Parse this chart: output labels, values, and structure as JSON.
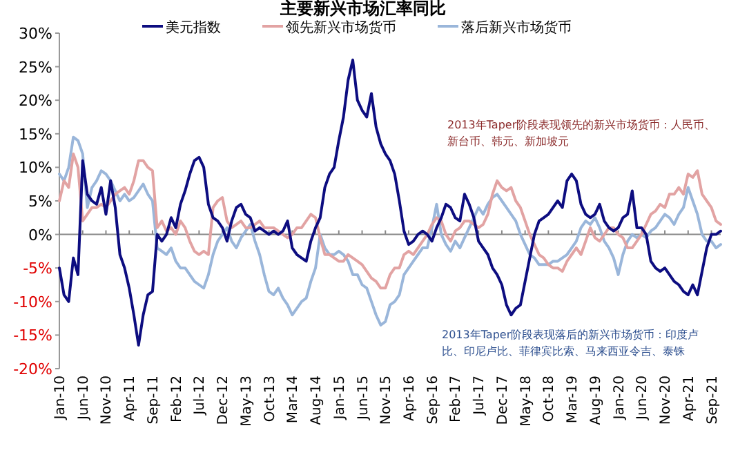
{
  "chart_data": {
    "type": "line",
    "title": "主要新兴市场汇率同比",
    "legend": "top",
    "line_style": "solid",
    "marker": "none",
    "x": [
      "2010-01",
      "2010-02",
      "2010-03",
      "2010-04",
      "2010-05",
      "2010-06",
      "2010-07",
      "2010-08",
      "2010-09",
      "2010-10",
      "2010-11",
      "2010-12",
      "2011-01",
      "2011-02",
      "2011-03",
      "2011-04",
      "2011-05",
      "2011-06",
      "2011-07",
      "2011-08",
      "2011-09",
      "2011-10",
      "2011-11",
      "2011-12",
      "2012-01",
      "2012-02",
      "2012-03",
      "2012-04",
      "2012-05",
      "2012-06",
      "2012-07",
      "2012-08",
      "2012-09",
      "2012-10",
      "2012-11",
      "2012-12",
      "2013-01",
      "2013-02",
      "2013-03",
      "2013-04",
      "2013-05",
      "2013-06",
      "2013-07",
      "2013-08",
      "2013-09",
      "2013-10",
      "2013-11",
      "2013-12",
      "2014-01",
      "2014-02",
      "2014-03",
      "2014-04",
      "2014-05",
      "2014-06",
      "2014-07",
      "2014-08",
      "2014-09",
      "2014-10",
      "2014-11",
      "2014-12",
      "2015-01",
      "2015-02",
      "2015-03",
      "2015-04",
      "2015-05",
      "2015-06",
      "2015-07",
      "2015-08",
      "2015-09",
      "2015-10",
      "2015-11",
      "2015-12",
      "2016-01",
      "2016-02",
      "2016-03",
      "2016-04",
      "2016-05",
      "2016-06",
      "2016-07",
      "2016-08",
      "2016-09",
      "2016-10",
      "2016-11",
      "2016-12",
      "2017-01",
      "2017-02",
      "2017-03",
      "2017-04",
      "2017-05",
      "2017-06",
      "2017-07",
      "2017-08",
      "2017-09",
      "2017-10",
      "2017-11",
      "2017-12",
      "2018-01",
      "2018-02",
      "2018-03",
      "2018-04",
      "2018-05",
      "2018-06",
      "2018-07",
      "2018-08",
      "2018-09",
      "2018-10",
      "2018-11",
      "2018-12",
      "2019-01",
      "2019-02",
      "2019-03",
      "2019-04",
      "2019-05",
      "2019-06",
      "2019-07",
      "2019-08",
      "2019-09",
      "2019-10",
      "2019-11",
      "2019-12",
      "2020-01",
      "2020-02",
      "2020-03",
      "2020-04",
      "2020-05",
      "2020-06",
      "2020-07",
      "2020-08",
      "2020-09",
      "2020-10",
      "2020-11",
      "2020-12",
      "2021-01",
      "2021-02",
      "2021-03",
      "2021-04",
      "2021-05",
      "2021-06",
      "2021-07",
      "2021-08",
      "2021-09",
      "2021-10",
      "2021-11"
    ],
    "series": [
      {
        "name": "美元指数",
        "color": "#0d0d80",
        "values": [
          -5,
          -9,
          -10,
          -3.5,
          -6,
          11,
          6,
          5,
          4.5,
          7,
          3,
          8,
          4,
          -3,
          -5,
          -8,
          -12,
          -16.5,
          -12,
          -9,
          -8.5,
          0,
          -1,
          0,
          2.5,
          1,
          4.5,
          6.5,
          9,
          11,
          11.5,
          10,
          4.5,
          2.5,
          2,
          1,
          -1,
          2,
          4,
          4.5,
          3,
          2.5,
          0.5,
          1,
          0.5,
          0,
          0.5,
          0,
          0.5,
          2,
          -2,
          -3,
          -3.5,
          -4,
          -1,
          1,
          2.5,
          7,
          9,
          10,
          14,
          17.5,
          23,
          26,
          20,
          18.5,
          17.5,
          21,
          16,
          13.5,
          12,
          11,
          9,
          5,
          0.5,
          -1.5,
          -1,
          0,
          0.5,
          0,
          -1,
          1,
          2.5,
          4.5,
          4,
          2.5,
          2,
          6,
          4.5,
          2.5,
          -1,
          -2,
          -3,
          -5,
          -6,
          -7.5,
          -10.5,
          -12,
          -11,
          -10.5,
          -7,
          -3.5,
          0,
          2,
          2.5,
          3,
          4,
          5,
          4,
          8,
          9,
          8,
          4.5,
          3,
          2.5,
          3,
          4.5,
          2,
          1,
          0.5,
          1,
          2.5,
          3,
          6.5,
          1,
          1,
          0,
          -4,
          -5,
          -5.5,
          -5,
          -6,
          -7,
          -7.5,
          -8.5,
          -9,
          -7.5,
          -9,
          -5.5,
          -2,
          0,
          0,
          0.5
        ]
      },
      {
        "name": "领先新兴市场货币",
        "color": "#e2a3a3",
        "values": [
          5,
          8,
          7,
          12,
          10,
          2,
          3,
          4,
          4,
          4.5,
          4,
          5,
          6,
          6.5,
          7,
          6,
          8,
          11,
          11,
          10,
          9.5,
          1,
          2,
          0.5,
          1,
          0,
          2,
          1,
          -1,
          -2.5,
          -3,
          -2.5,
          -3,
          4,
          5,
          5.5,
          2,
          1,
          1.5,
          2,
          1,
          1,
          1.5,
          2,
          1,
          1,
          1,
          0.5,
          0,
          -0.5,
          0,
          1,
          1,
          2,
          3,
          2.5,
          -0.5,
          -3,
          -3,
          -3.5,
          -4,
          -4,
          -3,
          -3.5,
          -4,
          -4.5,
          -5.5,
          -6.5,
          -7,
          -8,
          -8,
          -6,
          -5,
          -5,
          -3,
          -2.5,
          -3,
          -2,
          -1,
          0,
          1.5,
          2.5,
          2,
          0,
          -1,
          0.5,
          1,
          2,
          2,
          1.5,
          1,
          1.5,
          3,
          6,
          8,
          7,
          6.5,
          7,
          5,
          4,
          2,
          0,
          -1.5,
          -3,
          -3.5,
          -4.5,
          -5,
          -5,
          -5.5,
          -4,
          -3,
          -2,
          -3,
          -1,
          1,
          -0.5,
          -1,
          0,
          1,
          1,
          0,
          -0.5,
          -2,
          -2,
          -1,
          0,
          1.5,
          3,
          3.5,
          4.5,
          4,
          6,
          6,
          7,
          6,
          9,
          8.5,
          9.5,
          6,
          5,
          4,
          2,
          1.5
        ]
      },
      {
        "name": "落后新兴市场货币",
        "color": "#9ab6da",
        "values": [
          9,
          8,
          10,
          14.5,
          14,
          12,
          4,
          7,
          8,
          9.5,
          9,
          8,
          6.5,
          5,
          6,
          5,
          5.5,
          6.5,
          7.5,
          6,
          5,
          -2,
          -2.5,
          -3,
          -2,
          -4,
          -5,
          -5,
          -6,
          -7,
          -7.5,
          -8,
          -6,
          -3,
          -1,
          0,
          1,
          -1,
          -2,
          -0.5,
          0.5,
          1.5,
          -1,
          -3,
          -6,
          -8.5,
          -9,
          -8,
          -9.5,
          -10.5,
          -12,
          -11,
          -10,
          -9.5,
          -7,
          -5,
          0,
          -2,
          -3,
          -3,
          -2.5,
          -3,
          -4,
          -6,
          -6,
          -7.5,
          -8,
          -10,
          -12,
          -13.5,
          -13,
          -10.5,
          -10,
          -9,
          -6,
          -5,
          -4,
          -3,
          -2,
          -2,
          1,
          4.5,
          0,
          -1.5,
          -2.5,
          -1,
          -2,
          -0.5,
          1,
          2.5,
          4,
          3,
          4.5,
          5.5,
          6,
          5,
          4,
          3,
          2,
          0,
          -1.5,
          -3,
          -3.5,
          -4.5,
          -4.5,
          -4.5,
          -4,
          -4,
          -3.5,
          -3,
          -2,
          -1,
          1,
          2,
          1.5,
          2.5,
          1,
          -1,
          -2,
          -3.5,
          -6,
          -3,
          -1,
          0,
          -0.5,
          0,
          -0.5,
          0.5,
          1,
          2,
          3,
          2.5,
          1.5,
          3,
          4,
          7,
          5,
          3,
          0,
          -1,
          -1,
          -2,
          -1.5
        ]
      }
    ],
    "xlim": [
      "2010-01",
      "2021-11"
    ],
    "xticks": [
      {
        "value": "2010-01",
        "label": "Jan-10"
      },
      {
        "value": "2010-06",
        "label": "Jun-10"
      },
      {
        "value": "2010-11",
        "label": "Nov-10"
      },
      {
        "value": "2011-04",
        "label": "Apr-11"
      },
      {
        "value": "2011-09",
        "label": "Sep-11"
      },
      {
        "value": "2012-02",
        "label": "Feb-12"
      },
      {
        "value": "2012-07",
        "label": "Jul-12"
      },
      {
        "value": "2012-12",
        "label": "Dec-12"
      },
      {
        "value": "2013-05",
        "label": "May-13"
      },
      {
        "value": "2013-10",
        "label": "Oct-13"
      },
      {
        "value": "2014-03",
        "label": "Mar-14"
      },
      {
        "value": "2014-08",
        "label": "Aug-14"
      },
      {
        "value": "2015-01",
        "label": "Jan-15"
      },
      {
        "value": "2015-06",
        "label": "Jun-15"
      },
      {
        "value": "2015-11",
        "label": "Nov-15"
      },
      {
        "value": "2016-04",
        "label": "Apr-16"
      },
      {
        "value": "2016-09",
        "label": "Sep-16"
      },
      {
        "value": "2017-02",
        "label": "Feb-17"
      },
      {
        "value": "2017-07",
        "label": "Jul-17"
      },
      {
        "value": "2017-12",
        "label": "Dec-17"
      },
      {
        "value": "2018-05",
        "label": "May-18"
      },
      {
        "value": "2018-10",
        "label": "Oct-18"
      },
      {
        "value": "2019-03",
        "label": "Mar-19"
      },
      {
        "value": "2019-08",
        "label": "Aug-19"
      },
      {
        "value": "2020-01",
        "label": "Jan-20"
      },
      {
        "value": "2020-06",
        "label": "Jun-20"
      },
      {
        "value": "2020-11",
        "label": "Nov-20"
      },
      {
        "value": "2021-04",
        "label": "Apr-21"
      },
      {
        "value": "2021-09",
        "label": "Sep-21"
      }
    ],
    "ylim": [
      -20,
      30
    ],
    "yticks": [
      {
        "value": -20,
        "label": "-20%"
      },
      {
        "value": -15,
        "label": "-15%"
      },
      {
        "value": -10,
        "label": "-10%"
      },
      {
        "value": -5,
        "label": "-5%"
      },
      {
        "value": 0,
        "label": "0%"
      },
      {
        "value": 5,
        "label": "5%"
      },
      {
        "value": 10,
        "label": "10%"
      },
      {
        "value": 15,
        "label": "15%"
      },
      {
        "value": 20,
        "label": "20%"
      },
      {
        "value": 25,
        "label": "25%"
      },
      {
        "value": 30,
        "label": "30%"
      }
    ],
    "annotations": [
      "2013年Taper阶段表现领先的新兴市场货币：人民币、新台币、韩元、新加坡元",
      "2013年Taper阶段表现落后的新兴市场货币：印度卢比、印尼卢比、菲律宾比索、马来西亚令吉、泰铢"
    ]
  }
}
